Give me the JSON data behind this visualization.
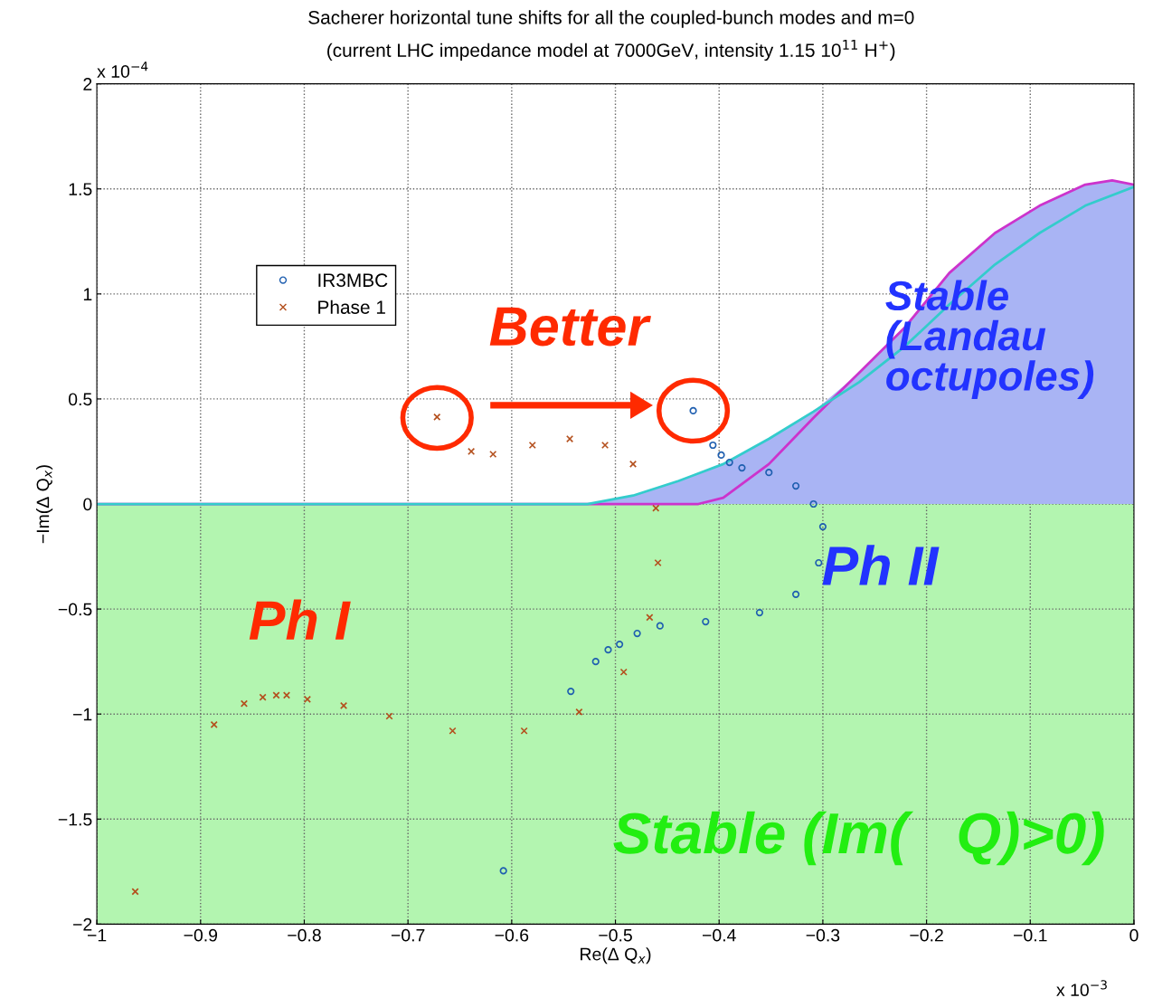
{
  "chart_data": {
    "type": "scatter",
    "title": "Sacherer horizontal tune shifts for all the coupled-bunch modes and m=0",
    "subtitle": "(current LHC impedance model at 7000GeV, intensity 1.15 10$^{11}$ H$^{+}$)",
    "xlabel": "Re(Δ Q$_{x}$)",
    "ylabel": "−Im(Δ Q$_{x}$)",
    "xlim": [
      -1,
      0
    ],
    "xticks": [
      -1,
      -0.9,
      -0.8,
      -0.7,
      -0.6,
      -0.5,
      -0.4,
      -0.3,
      -0.2,
      -0.1,
      0
    ],
    "ylim": [
      -2,
      2
    ],
    "yticks": [
      -2,
      -1.5,
      -1,
      -0.5,
      0,
      0.5,
      1,
      1.5,
      2
    ],
    "grid": true,
    "legend": "top left",
    "series": [
      {
        "type": "area",
        "color": "#a9b4f4",
        "x": [
          -0.527,
          -0.483,
          -0.439,
          -0.396,
          -0.352,
          -0.309,
          -0.265,
          -0.221,
          -0.178,
          -0.134,
          -0.091,
          -0.047,
          -0.021,
          0
        ],
        "values": [
          0,
          0.04,
          0.11,
          0.19,
          0.31,
          0.44,
          0.625,
          0.84,
          1.1,
          1.29,
          1.42,
          1.52,
          1.54,
          1.52
        ]
      },
      {
        "type": "line",
        "color": "#cc33cc",
        "x": [
          -1,
          -0.42,
          -0.396,
          -0.352,
          -0.309,
          -0.265,
          -0.221,
          -0.178,
          -0.134,
          -0.091,
          -0.047,
          -0.021,
          0
        ],
        "values": [
          0,
          0,
          0.03,
          0.19,
          0.41,
          0.625,
          0.84,
          1.1,
          1.29,
          1.42,
          1.52,
          1.54,
          1.52
        ]
      },
      {
        "type": "line",
        "color": "#33cccc",
        "x": [
          -1,
          -0.527,
          -0.483,
          -0.439,
          -0.396,
          -0.352,
          -0.309,
          -0.265,
          -0.221,
          -0.178,
          -0.134,
          -0.091,
          -0.047,
          0
        ],
        "values": [
          0,
          0,
          0.04,
          0.11,
          0.19,
          0.31,
          0.44,
          0.58,
          0.75,
          0.95,
          1.14,
          1.29,
          1.42,
          1.51
        ]
      },
      {
        "name": "IR3MBC",
        "color": "#1f5fb0",
        "marker": "circle",
        "x": [
          -0.425,
          -0.406,
          -0.398,
          -0.39,
          -0.378,
          -0.352,
          -0.326,
          -0.309,
          -0.3,
          -0.304,
          -0.326,
          -0.361,
          -0.413,
          -0.457,
          -0.479,
          -0.496,
          -0.507,
          -0.519,
          -0.543,
          -0.608
        ],
        "values": [
          0.444,
          0.28,
          0.233,
          0.198,
          0.172,
          0.15,
          0.086,
          0,
          -0.108,
          -0.28,
          -0.43,
          -0.517,
          -0.56,
          -0.58,
          -0.616,
          -0.668,
          -0.694,
          -0.75,
          -0.892,
          -1.746
        ]
      },
      {
        "name": "Phase 1",
        "color": "#b4501e",
        "marker": "cross",
        "x": [
          -0.672,
          -0.639,
          -0.618,
          -0.58,
          -0.544,
          -0.51,
          -0.483,
          -0.461,
          -0.459,
          -0.467,
          -0.492,
          -0.535,
          -0.588,
          -0.657,
          -0.718,
          -0.762,
          -0.797,
          -0.817,
          -0.827,
          -0.84,
          -0.858,
          -0.887,
          -0.963
        ],
        "values": [
          0.414,
          0.25,
          0.237,
          0.28,
          0.31,
          0.28,
          0.19,
          -0.02,
          -0.28,
          -0.54,
          -0.8,
          -0.99,
          -1.08,
          -1.08,
          -1.01,
          -0.96,
          -0.93,
          -0.91,
          -0.91,
          -0.92,
          -0.95,
          -1.05,
          -1.845
        ]
      }
    ],
    "bands": [
      {
        "axis": "y",
        "from": -2,
        "to": 0,
        "color": "#b3f5b0"
      }
    ],
    "annotations": [
      "Better",
      "Stable\n(Landau\noctupoles)",
      "Ph II",
      "Ph I",
      "Stable (Im(   Q)>0)",
      "x 10$^{−4}$",
      "x 10$^{−3}$"
    ]
  }
}
